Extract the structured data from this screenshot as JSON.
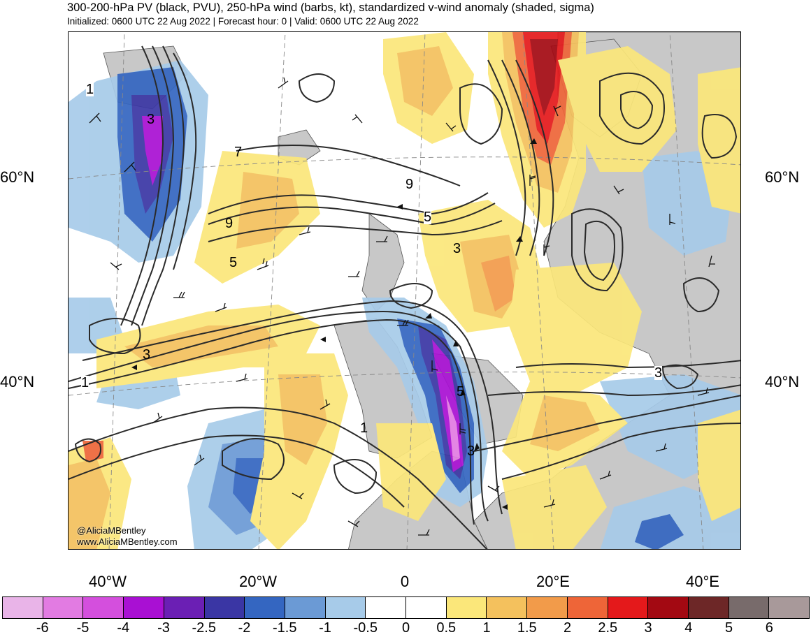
{
  "header": {
    "title": "300-200-hPa PV (black, PVU), 250-hPa wind (barbs, kt), standardized v-wind anomaly (shaded, sigma)",
    "subtitle": "Initialized: 0600 UTC 22 Aug 2022 | Forecast hour: 0 | Valid: 0600 UTC 22 Aug 2022"
  },
  "map": {
    "lat_labels": [
      "60°N",
      "40°N"
    ],
    "lon_labels": [
      "40°W",
      "20°W",
      "0",
      "20°E",
      "40°E"
    ],
    "contour_labels": [
      "1",
      "3",
      "7",
      "9",
      "5",
      "9",
      "5",
      "3",
      "3",
      "1",
      "3",
      "5",
      "3",
      "1"
    ],
    "credit_handle": "@AliciaMBentley",
    "credit_url": "www.AliciaMBentley.com"
  },
  "colorbar": {
    "colors": [
      "#e9b4e8",
      "#e27be2",
      "#d44fdd",
      "#a910d3",
      "#6b1fb4",
      "#3a36a4",
      "#3466c1",
      "#6b9ad5",
      "#a7cbe9",
      "#ffffff",
      "#ffffff",
      "#fbe77a",
      "#f4c15d",
      "#f29b4a",
      "#ee6538",
      "#e4191b",
      "#a30912",
      "#6d2727",
      "#786b6b",
      "#a8999a"
    ],
    "labels": [
      "-6",
      "-5",
      "-4",
      "-3",
      "-2.5",
      "-2",
      "-1.5",
      "-1",
      "-0.5",
      "0",
      "0.5",
      "1",
      "1.5",
      "2",
      "2.5",
      "3",
      "4",
      "5",
      "6"
    ]
  }
}
